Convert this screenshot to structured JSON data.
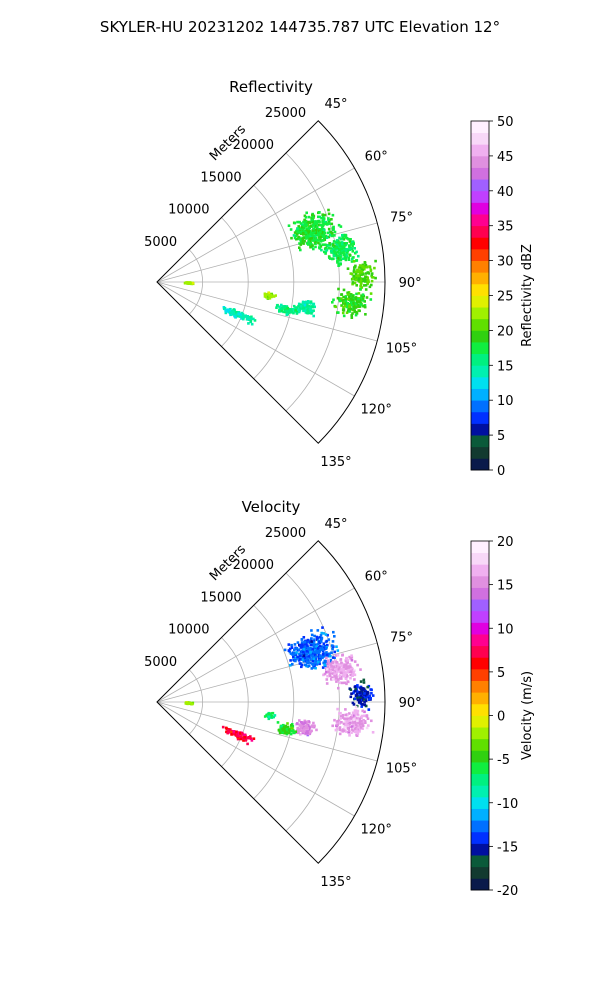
{
  "figure": {
    "suptitle": "SKYLER-HU  20231202  144735.787 UTC Elevation 12°"
  },
  "chart_data": [
    {
      "type": "heatmap",
      "subtype": "polar-sector-ppi",
      "title": "Reflectivity",
      "range_label": "Meters",
      "theta_range_deg": [
        45,
        135
      ],
      "r_max": 25000,
      "radial_ticks": [
        5000,
        10000,
        15000,
        20000,
        25000
      ],
      "radial_tick_labels": [
        "5000",
        "10000",
        "15000",
        "20000",
        "25000"
      ],
      "theta_ticks": [
        45,
        60,
        75,
        90,
        105,
        120,
        135
      ],
      "theta_tick_labels": [
        "45°",
        "60°",
        "75°",
        "90°",
        "105°",
        "120°",
        "135°"
      ],
      "grid": true,
      "colorbar": {
        "label": "Reflectivity dBZ",
        "vmin": 0,
        "vmax": 50,
        "ticks": [
          0,
          5,
          10,
          15,
          20,
          25,
          30,
          35,
          40,
          45,
          50
        ],
        "tick_labels": [
          "0",
          "5",
          "10",
          "15",
          "20",
          "25",
          "30",
          "35",
          "40",
          "45",
          "50"
        ],
        "colors": [
          "#0a1a4a",
          "#123a30",
          "#0a5a3a",
          "#0010a0",
          "#0030ff",
          "#0070ff",
          "#00b0ff",
          "#00e0f0",
          "#00f0b0",
          "#00f080",
          "#10ee40",
          "#30d010",
          "#60e000",
          "#a0f000",
          "#e0f000",
          "#ffe000",
          "#ffb000",
          "#ff8000",
          "#ff4000",
          "#ff0000",
          "#ff0050",
          "#ff0090",
          "#e000e0",
          "#c040ff",
          "#a060ff",
          "#d070e0",
          "#e090e0",
          "#f0b0f0",
          "#f8d8f8",
          "#fff0ff"
        ]
      },
      "regions": [
        {
          "az": 72,
          "r": 18000,
          "daz": 8,
          "dr": 3500,
          "value": 18
        },
        {
          "az": 80,
          "r": 20500,
          "daz": 6,
          "dr": 2500,
          "value": 17
        },
        {
          "az": 88,
          "r": 22500,
          "daz": 5,
          "dr": 1800,
          "value": 20
        },
        {
          "az": 96,
          "r": 21500,
          "daz": 5,
          "dr": 2500,
          "value": 19
        },
        {
          "az": 100,
          "r": 16500,
          "daz": 4,
          "dr": 1500,
          "value": 15
        },
        {
          "az": 97,
          "r": 12500,
          "daz": 2,
          "dr": 800,
          "value": 22
        },
        {
          "az": 112,
          "r": 9500,
          "daz": 3,
          "dr": 2500,
          "value": 14
        },
        {
          "az": 102,
          "r": 14500,
          "daz": 3,
          "dr": 1500,
          "value": 16
        },
        {
          "az": 92,
          "r": 3500,
          "daz": 2,
          "dr": 700,
          "value": 22
        }
      ]
    },
    {
      "type": "heatmap",
      "subtype": "polar-sector-ppi",
      "title": "Velocity",
      "range_label": "Meters",
      "theta_range_deg": [
        45,
        135
      ],
      "r_max": 25000,
      "radial_ticks": [
        5000,
        10000,
        15000,
        20000,
        25000
      ],
      "radial_tick_labels": [
        "5000",
        "10000",
        "15000",
        "20000",
        "25000"
      ],
      "theta_ticks": [
        45,
        60,
        75,
        90,
        105,
        120,
        135
      ],
      "theta_tick_labels": [
        "45°",
        "60°",
        "75°",
        "90°",
        "105°",
        "120°",
        "135°"
      ],
      "grid": true,
      "colorbar": {
        "label": "Velocity (m/s)",
        "vmin": -20,
        "vmax": 20,
        "ticks": [
          -20,
          -15,
          -10,
          -5,
          0,
          5,
          10,
          15,
          20
        ],
        "tick_labels": [
          "-20",
          "-15",
          "-10",
          "-5",
          "0",
          "5",
          "10",
          "15",
          "20"
        ],
        "colors": [
          "#0a1a4a",
          "#123a30",
          "#0a5a3a",
          "#0010a0",
          "#0030ff",
          "#0070ff",
          "#00b0ff",
          "#00e0f0",
          "#00f0b0",
          "#00f080",
          "#10ee40",
          "#30d010",
          "#60e000",
          "#a0f000",
          "#e0f000",
          "#ffe000",
          "#ffb000",
          "#ff8000",
          "#ff4000",
          "#ff0000",
          "#ff0050",
          "#ff0090",
          "#e000e0",
          "#c040ff",
          "#a060ff",
          "#d070e0",
          "#e090e0",
          "#f0b0f0",
          "#f8d8f8",
          "#fff0ff"
        ]
      },
      "regions": [
        {
          "az": 72,
          "r": 18000,
          "daz": 8,
          "dr": 3500,
          "value": -13
        },
        {
          "az": 80,
          "r": 20500,
          "daz": 6,
          "dr": 2500,
          "value": 16
        },
        {
          "az": 88,
          "r": 22500,
          "daz": 5,
          "dr": 1800,
          "value": -15
        },
        {
          "az": 96,
          "r": 21500,
          "daz": 5,
          "dr": 2500,
          "value": 16
        },
        {
          "az": 100,
          "r": 16500,
          "daz": 4,
          "dr": 1500,
          "value": 15
        },
        {
          "az": 97,
          "r": 12500,
          "daz": 2,
          "dr": 800,
          "value": -7
        },
        {
          "az": 112,
          "r": 9500,
          "daz": 3,
          "dr": 2500,
          "value": 7
        },
        {
          "az": 102,
          "r": 14500,
          "daz": 3,
          "dr": 1500,
          "value": -5
        },
        {
          "az": 92,
          "r": 3500,
          "daz": 2,
          "dr": 700,
          "value": -2
        }
      ]
    }
  ]
}
